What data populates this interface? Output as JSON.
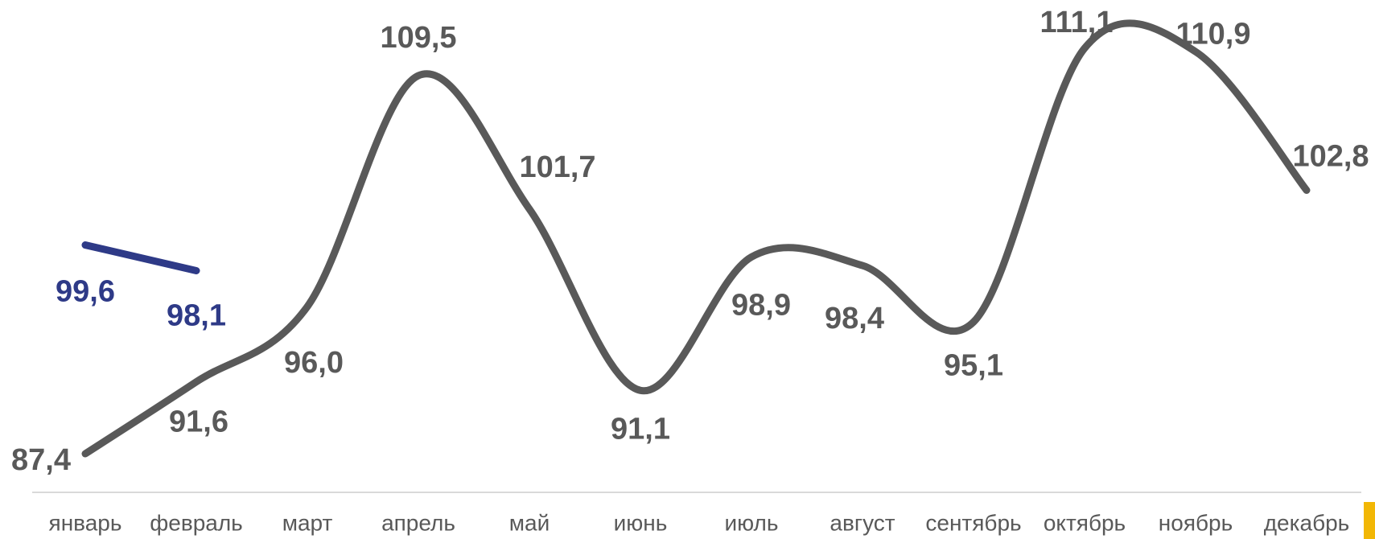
{
  "chart_data": {
    "type": "line",
    "categories": [
      "январь",
      "февраль",
      "март",
      "апрель",
      "май",
      "июнь",
      "июль",
      "август",
      "сентябрь",
      "октябрь",
      "ноябрь",
      "декабрь"
    ],
    "series": [
      {
        "color": "#595959",
        "values": [
          87.4,
          91.6,
          96.0,
          109.5,
          101.7,
          91.1,
          98.9,
          98.4,
          95.1,
          111.1,
          110.9,
          102.8
        ],
        "value_labels": [
          "87,4",
          "91,6",
          "96,0",
          "109,5",
          "101,7",
          "91,1",
          "98,9",
          "98,4",
          "95,1",
          "111,1",
          "110,9",
          "102,8"
        ]
      },
      {
        "color": "#2e3a87",
        "values": [
          99.6,
          98.1,
          null,
          null,
          null,
          null,
          null,
          null,
          null,
          null,
          null,
          null
        ],
        "value_labels": [
          "99,6",
          "98,1",
          null,
          null,
          null,
          null,
          null,
          null,
          null,
          null,
          null,
          null
        ]
      }
    ]
  }
}
